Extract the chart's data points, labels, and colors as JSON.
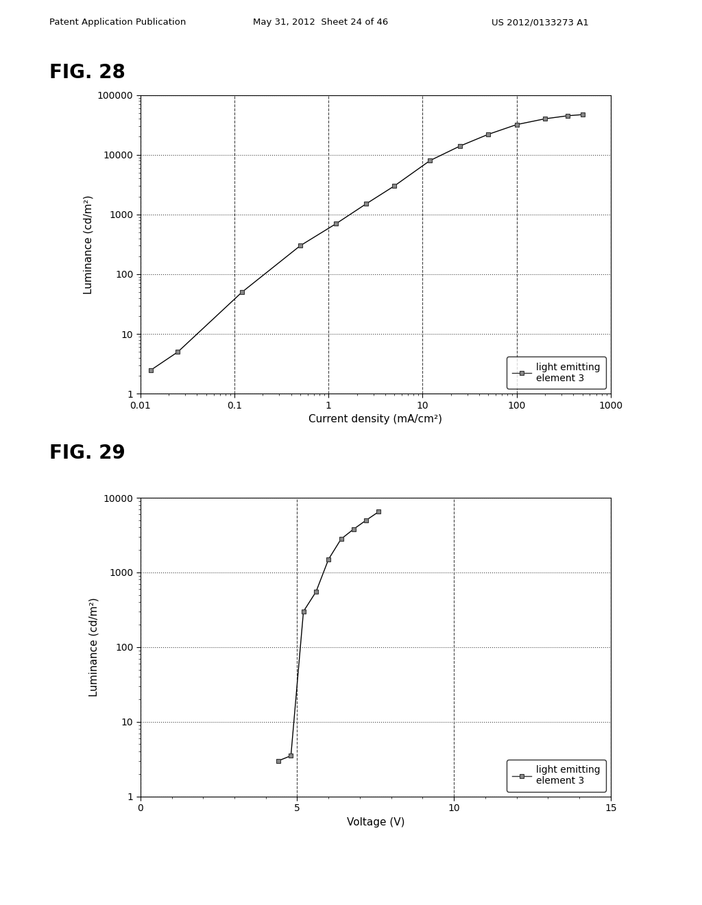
{
  "header_left": "Patent Application Publication",
  "header_center": "May 31, 2012  Sheet 24 of 46",
  "header_right": "US 2012/0133273 A1",
  "fig28_title": "FIG. 28",
  "fig29_title": "FIG. 29",
  "fig28_xlabel": "Current density (mA/cm²)",
  "fig28_ylabel": "Luminance (cd/m²)",
  "fig29_xlabel": "Voltage (V)",
  "fig29_ylabel": "Luminance (cd/m²)",
  "legend_label": "light emitting\nelement 3",
  "fig28_x": [
    0.013,
    0.025,
    0.12,
    0.5,
    1.2,
    2.5,
    5.0,
    12,
    25,
    50,
    100,
    200,
    350,
    500
  ],
  "fig28_y": [
    2.5,
    5.0,
    50,
    300,
    700,
    1500,
    3000,
    8000,
    14000,
    22000,
    32000,
    40000,
    45000,
    47000
  ],
  "fig29_x": [
    4.4,
    4.8,
    5.2,
    5.6,
    6.0,
    6.4,
    6.8,
    7.2,
    7.6
  ],
  "fig29_y": [
    3.0,
    3.5,
    300,
    550,
    1500,
    2800,
    3800,
    5000,
    6500
  ],
  "fig28_xlim": [
    0.01,
    1000
  ],
  "fig28_ylim": [
    1,
    100000
  ],
  "fig29_xlim": [
    0,
    15
  ],
  "fig29_ylim": [
    1,
    10000
  ],
  "marker": "s",
  "marker_facecolor": "#888888",
  "marker_edgecolor": "#333333",
  "line_color": "#000000",
  "bg_color": "#ffffff",
  "fig28_xtick_labels": [
    "0.01",
    "0.1",
    "1",
    "10",
    "100",
    "1000"
  ],
  "fig28_xticks": [
    0.01,
    0.1,
    1,
    10,
    100,
    1000
  ],
  "fig28_yticks": [
    1,
    10,
    100,
    1000,
    10000,
    100000
  ],
  "fig28_ytick_labels": [
    "1",
    "10",
    "100",
    "1000",
    "10000",
    "100000"
  ],
  "fig29_xticks": [
    0,
    5,
    10,
    15
  ],
  "fig29_xtick_labels": [
    "0",
    "5",
    "10",
    "15"
  ],
  "fig29_yticks": [
    1,
    10,
    100,
    1000,
    10000
  ],
  "fig29_ytick_labels": [
    "1",
    "10",
    "100",
    "1000",
    "10000"
  ]
}
